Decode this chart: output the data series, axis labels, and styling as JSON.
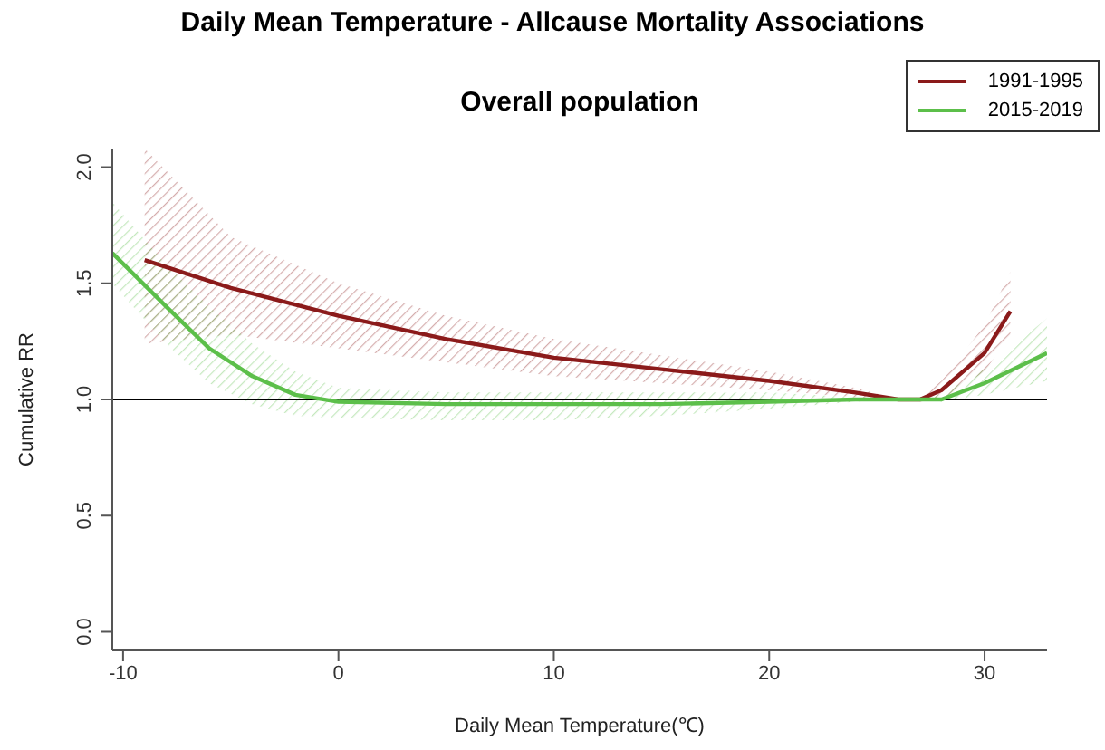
{
  "chart_data": {
    "type": "line",
    "title": "Daily Mean Temperature - Allcause Mortality Associations",
    "subtitle": "Overall population",
    "xlabel": "Daily Mean Temperature(℃)",
    "ylabel": "Cumulative RR",
    "xlim": [
      -10.5,
      32.9
    ],
    "xticks": [
      -10,
      0,
      10,
      20,
      30
    ],
    "ylim": [
      -0.08,
      2.08
    ],
    "yticks": [
      {
        "value": 0,
        "label": "0.0"
      },
      {
        "value": 0.5,
        "label": "0.5"
      },
      {
        "value": 1,
        "label": "1.0"
      },
      {
        "value": 1.5,
        "label": "1.5"
      },
      {
        "value": 2,
        "label": "2.0"
      }
    ],
    "grid": false,
    "legend": "top right",
    "marker": "none",
    "line_style": "solid",
    "ref_lines": [
      {
        "axis": "y",
        "value": 1,
        "color": "#000000"
      }
    ],
    "series": [
      {
        "name": "1991-1995",
        "color": "#8b1a1a",
        "x": [
          -9,
          -5,
          0,
          5,
          10,
          15,
          20,
          24,
          26,
          27,
          28,
          30,
          31.2
        ],
        "values": [
          1.6,
          1.48,
          1.36,
          1.26,
          1.18,
          1.13,
          1.08,
          1.03,
          1.0,
          1.0,
          1.04,
          1.2,
          1.38
        ],
        "lower": [
          1.24,
          1.28,
          1.22,
          1.16,
          1.1,
          1.07,
          1.04,
          1.01,
          1.0,
          0.99,
          1.0,
          1.12,
          1.28
        ],
        "upper": [
          2.08,
          1.7,
          1.5,
          1.36,
          1.26,
          1.19,
          1.12,
          1.05,
          1.0,
          1.01,
          1.08,
          1.32,
          1.55
        ]
      },
      {
        "name": "2015-2019",
        "color": "#5cbf4a",
        "x": [
          -10.5,
          -8,
          -6,
          -4,
          -2,
          0,
          5,
          10,
          15,
          20,
          24,
          26,
          28,
          30,
          32.9
        ],
        "values": [
          1.63,
          1.4,
          1.22,
          1.1,
          1.02,
          0.99,
          0.98,
          0.98,
          0.98,
          0.99,
          1.0,
          1.0,
          1.0,
          1.07,
          1.2
        ],
        "lower": [
          1.5,
          1.24,
          1.07,
          0.98,
          0.93,
          0.92,
          0.91,
          0.91,
          0.93,
          0.96,
          0.99,
          1.0,
          0.99,
          1.02,
          1.08
        ],
        "upper": [
          1.85,
          1.58,
          1.4,
          1.24,
          1.12,
          1.05,
          1.03,
          1.03,
          1.03,
          1.03,
          1.01,
          1.0,
          1.02,
          1.13,
          1.35
        ]
      }
    ]
  }
}
